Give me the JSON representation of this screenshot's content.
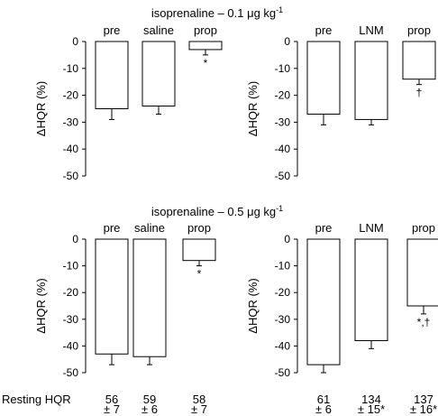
{
  "figure": {
    "resting_label": "Resting HQR"
  },
  "chart_data": [
    {
      "type": "bar",
      "title": "isoprenaline – 0.1 μg kg-1",
      "title_main": "isoprenaline – 0.1 ",
      "title_unit": "μg kg",
      "title_sup": "-1",
      "ylabel": "ΔHQR (%)",
      "ylim": [
        -50,
        0
      ],
      "yticks": [
        0,
        -10,
        -20,
        -30,
        -40,
        -50
      ],
      "categories": [
        "pre",
        "saline",
        "prop"
      ],
      "values": [
        -25,
        -24,
        -3
      ],
      "errors": [
        4,
        3,
        2
      ],
      "annotations": [
        "",
        "",
        "*"
      ],
      "resting": null
    },
    {
      "type": "bar",
      "title": "",
      "ylabel": "ΔHQR (%)",
      "ylim": [
        -50,
        0
      ],
      "yticks": [
        0,
        -10,
        -20,
        -30,
        -40,
        -50
      ],
      "categories": [
        "pre",
        "LNM",
        "prop"
      ],
      "values": [
        -27,
        -29,
        -14
      ],
      "errors": [
        4,
        2,
        2
      ],
      "annotations": [
        "",
        "",
        "†"
      ],
      "resting": null
    },
    {
      "type": "bar",
      "title": "isoprenaline – 0.5 μg kg-1",
      "title_main": "isoprenaline – 0.5 ",
      "title_unit": "μg kg",
      "title_sup": "-1",
      "ylabel": "ΔHQR (%)",
      "ylim": [
        -50,
        0
      ],
      "yticks": [
        0,
        -10,
        -20,
        -30,
        -40,
        -50
      ],
      "categories": [
        "pre",
        "saline",
        "prop"
      ],
      "values": [
        -43,
        -44,
        -8
      ],
      "errors": [
        4,
        3,
        2
      ],
      "annotations": [
        "",
        "",
        "*"
      ],
      "resting": [
        {
          "mean": "56",
          "sem": "± 7"
        },
        {
          "mean": "59",
          "sem": "± 6"
        },
        {
          "mean": "58",
          "sem": "± 7"
        }
      ]
    },
    {
      "type": "bar",
      "title": "",
      "ylabel": "ΔHQR (%)",
      "ylim": [
        -50,
        0
      ],
      "yticks": [
        0,
        -10,
        -20,
        -30,
        -40,
        -50
      ],
      "categories": [
        "pre",
        "LNM",
        "prop"
      ],
      "values": [
        -47,
        -38,
        -25
      ],
      "errors": [
        3,
        3,
        3
      ],
      "annotations": [
        "",
        "",
        "*,†"
      ],
      "resting": [
        {
          "mean": "61",
          "sem": "± 6"
        },
        {
          "mean": "134",
          "sem": "± 15*"
        },
        {
          "mean": "137",
          "sem": "± 16*"
        }
      ]
    }
  ]
}
